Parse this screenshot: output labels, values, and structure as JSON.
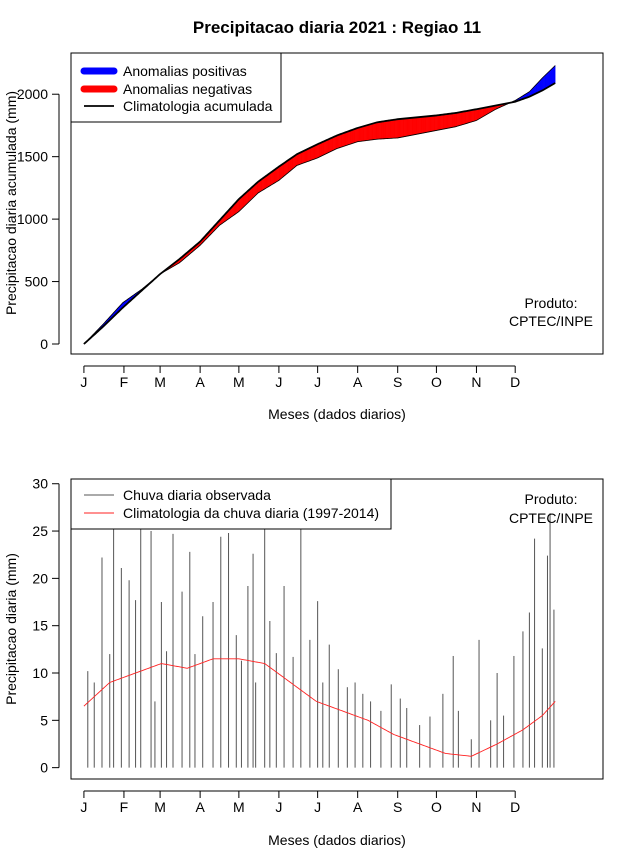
{
  "title": "Precipitacao diaria 2021 : Regiao 11",
  "chart_data": [
    {
      "type": "area",
      "ylabel": "Precipitacao diaria acumulada (mm)",
      "xlabel": "Meses (dados diarios)",
      "month_ticks": [
        "J",
        "F",
        "M",
        "A",
        "M",
        "J",
        "J",
        "A",
        "S",
        "O",
        "N",
        "D"
      ],
      "ylim": [
        -80,
        2330
      ],
      "yticks": [
        0,
        500,
        1000,
        1500,
        2000
      ],
      "xlim": [
        -10,
        402
      ],
      "legend": {
        "position": "top-left",
        "entries": [
          {
            "label": "Anomalias positivas",
            "color": "#0000ff"
          },
          {
            "label": "Anomalias negativas",
            "color": "#ff0000"
          },
          {
            "label": "Climatologia acumulada",
            "color": "#000000"
          }
        ]
      },
      "annotation": [
        "Produto:",
        "CPTEC/INPE"
      ],
      "days": [
        0,
        15,
        30,
        45,
        59,
        74,
        90,
        105,
        120,
        135,
        151,
        165,
        181,
        196,
        212,
        227,
        243,
        258,
        273,
        288,
        304,
        319,
        334,
        345,
        355,
        365
      ],
      "climatology": [
        0,
        140,
        290,
        430,
        560,
        680,
        820,
        990,
        1160,
        1300,
        1420,
        1520,
        1600,
        1670,
        1730,
        1775,
        1800,
        1815,
        1830,
        1850,
        1880,
        1910,
        1940,
        1980,
        2030,
        2090
      ],
      "observed": [
        0,
        160,
        330,
        440,
        560,
        650,
        790,
        950,
        1060,
        1210,
        1310,
        1430,
        1490,
        1565,
        1620,
        1640,
        1650,
        1680,
        1710,
        1740,
        1790,
        1880,
        1950,
        2020,
        2130,
        2230
      ]
    },
    {
      "type": "bar",
      "ylabel": "Precipitacao diaria (mm)",
      "xlabel": "Meses (dados diarios)",
      "month_ticks": [
        "J",
        "F",
        "M",
        "A",
        "M",
        "J",
        "J",
        "A",
        "S",
        "O",
        "N",
        "D"
      ],
      "ylim": [
        -1.2,
        30.5
      ],
      "yticks": [
        0,
        5,
        10,
        15,
        20,
        25,
        30
      ],
      "xlim": [
        -10,
        402
      ],
      "legend": {
        "position": "top-left",
        "entries": [
          {
            "label": "Chuva diaria observada",
            "color": "#555555"
          },
          {
            "label": "Climatologia da chuva diaria (1997-2014)",
            "color": "#ff2222"
          }
        ]
      },
      "annotation": [
        "Produto:",
        "CPTEC/INPE"
      ],
      "clim_days": [
        0,
        20,
        40,
        60,
        80,
        100,
        120,
        140,
        160,
        180,
        200,
        220,
        240,
        260,
        280,
        300,
        320,
        340,
        355,
        365
      ],
      "clim_values": [
        6.5,
        9.0,
        10.0,
        11.0,
        10.5,
        11.5,
        11.5,
        11.0,
        9.0,
        7.0,
        6.0,
        5.0,
        3.5,
        2.5,
        1.5,
        1.2,
        2.5,
        4.0,
        5.5,
        7.0
      ],
      "obs_days": [
        3,
        8,
        14,
        20,
        23,
        29,
        35,
        40,
        44,
        52,
        55,
        60,
        64,
        69,
        76,
        82,
        86,
        92,
        100,
        106,
        112,
        118,
        122,
        127,
        131,
        133,
        140,
        144,
        149,
        155,
        162,
        168,
        175,
        181,
        185,
        190,
        197,
        204,
        210,
        216,
        222,
        230,
        238,
        245,
        250,
        260,
        268,
        278,
        286,
        290,
        300,
        306,
        315,
        320,
        325,
        333,
        340,
        345,
        349,
        355,
        359,
        361,
        364
      ],
      "obs_values": [
        10.2,
        9,
        22.2,
        12,
        25.3,
        21.1,
        19.8,
        17.7,
        26.1,
        25,
        7,
        17.5,
        12.3,
        24.7,
        18.6,
        22.8,
        12,
        16,
        17.5,
        24.4,
        24.8,
        14,
        11.3,
        19.2,
        22.6,
        9,
        25.2,
        15.5,
        12.1,
        19.2,
        11.7,
        25.8,
        13.5,
        17.6,
        9,
        13,
        10.4,
        8.5,
        9,
        7.8,
        7,
        6,
        8.8,
        7.3,
        6.3,
        4.5,
        5.4,
        7.8,
        11.8,
        6,
        3,
        13.5,
        5,
        10,
        5.5,
        11.8,
        14.4,
        16.4,
        24.2,
        12.6,
        22.4,
        26.9,
        16.7
      ]
    }
  ]
}
